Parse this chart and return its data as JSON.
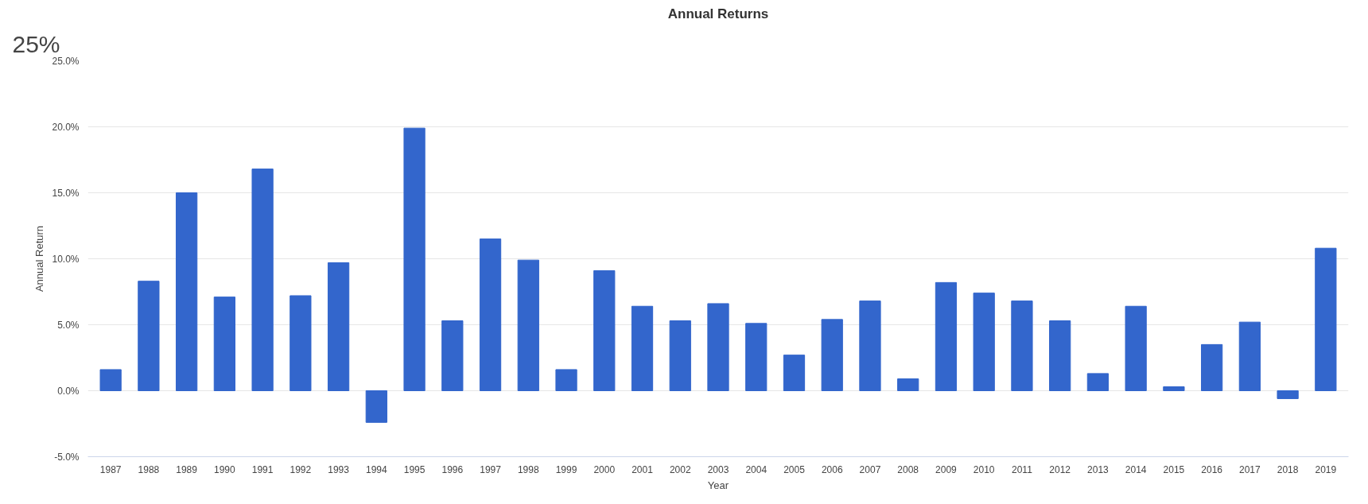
{
  "chart_data": {
    "type": "bar",
    "title": "Annual Returns",
    "xlabel": "Year",
    "ylabel": "Annual Return",
    "categories": [
      "1987",
      "1988",
      "1989",
      "1990",
      "1991",
      "1992",
      "1993",
      "1994",
      "1995",
      "1996",
      "1997",
      "1998",
      "1999",
      "2000",
      "2001",
      "2002",
      "2003",
      "2004",
      "2005",
      "2006",
      "2007",
      "2008",
      "2009",
      "2010",
      "2011",
      "2012",
      "2013",
      "2014",
      "2015",
      "2016",
      "2017",
      "2018",
      "2019"
    ],
    "values": [
      1.6,
      8.3,
      15.0,
      7.1,
      16.8,
      7.2,
      9.7,
      -2.4,
      19.9,
      5.3,
      11.5,
      9.9,
      1.6,
      9.1,
      6.4,
      5.3,
      6.6,
      5.1,
      2.7,
      5.4,
      6.8,
      0.9,
      8.2,
      7.4,
      6.8,
      5.3,
      1.3,
      6.4,
      0.3,
      3.5,
      5.2,
      -0.6,
      10.8
    ],
    "color": "#3366cc",
    "ylim": [
      -5,
      25
    ],
    "yticks": [
      {
        "value": -5,
        "label": "-5.0%"
      },
      {
        "value": 0,
        "label": "0.0%"
      },
      {
        "value": 5,
        "label": "5.0%"
      },
      {
        "value": 10,
        "label": "10.0%"
      },
      {
        "value": 15,
        "label": "15.0%"
      },
      {
        "value": 20,
        "label": "20.0%"
      },
      {
        "value": 25,
        "label": "25.0%"
      }
    ],
    "grid": "y",
    "annotations": [
      "25%"
    ]
  }
}
